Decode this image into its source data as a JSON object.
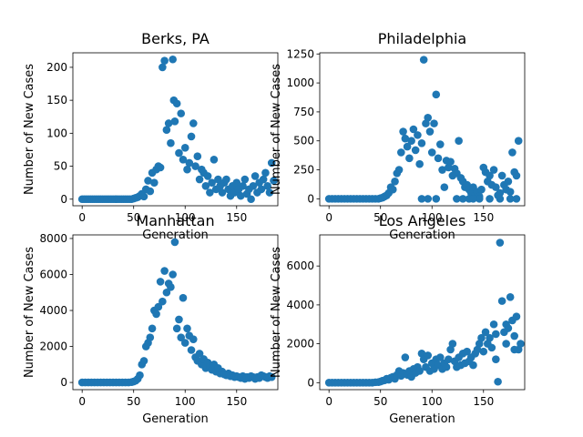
{
  "chart_data": [
    {
      "type": "scatter",
      "title": "Berks, PA",
      "xlabel": "Generation",
      "ylabel": "Number of New Cases",
      "xlim": [
        -9,
        190
      ],
      "ylim": [
        -10,
        222
      ],
      "xticks": [
        0,
        50,
        100,
        150
      ],
      "yticks": [
        0,
        50,
        100,
        150,
        200
      ],
      "grid": false,
      "color": "#1f77b4",
      "points": [
        [
          0,
          0
        ],
        [
          2,
          0
        ],
        [
          4,
          0
        ],
        [
          6,
          0
        ],
        [
          8,
          0
        ],
        [
          10,
          0
        ],
        [
          12,
          0
        ],
        [
          14,
          0
        ],
        [
          16,
          0
        ],
        [
          18,
          0
        ],
        [
          20,
          0
        ],
        [
          22,
          0
        ],
        [
          24,
          0
        ],
        [
          26,
          0
        ],
        [
          28,
          0
        ],
        [
          30,
          0
        ],
        [
          32,
          0
        ],
        [
          34,
          0
        ],
        [
          36,
          0
        ],
        [
          38,
          0
        ],
        [
          40,
          0
        ],
        [
          42,
          0
        ],
        [
          44,
          0
        ],
        [
          46,
          0
        ],
        [
          48,
          0
        ],
        [
          50,
          1
        ],
        [
          52,
          2
        ],
        [
          54,
          3
        ],
        [
          56,
          5
        ],
        [
          58,
          8
        ],
        [
          60,
          4
        ],
        [
          62,
          15
        ],
        [
          64,
          28
        ],
        [
          66,
          12
        ],
        [
          68,
          40
        ],
        [
          70,
          25
        ],
        [
          72,
          45
        ],
        [
          74,
          50
        ],
        [
          76,
          48
        ],
        [
          78,
          200
        ],
        [
          80,
          210
        ],
        [
          82,
          105
        ],
        [
          84,
          115
        ],
        [
          86,
          85
        ],
        [
          88,
          212
        ],
        [
          89,
          150
        ],
        [
          90,
          118
        ],
        [
          92,
          145
        ],
        [
          94,
          70
        ],
        [
          96,
          130
        ],
        [
          98,
          60
        ],
        [
          100,
          78
        ],
        [
          102,
          45
        ],
        [
          104,
          55
        ],
        [
          106,
          95
        ],
        [
          108,
          115
        ],
        [
          110,
          50
        ],
        [
          112,
          65
        ],
        [
          114,
          30
        ],
        [
          116,
          45
        ],
        [
          118,
          40
        ],
        [
          120,
          20
        ],
        [
          122,
          35
        ],
        [
          124,
          10
        ],
        [
          126,
          25
        ],
        [
          128,
          60
        ],
        [
          130,
          15
        ],
        [
          132,
          30
        ],
        [
          134,
          20
        ],
        [
          136,
          10
        ],
        [
          138,
          25
        ],
        [
          140,
          30
        ],
        [
          142,
          15
        ],
        [
          144,
          5
        ],
        [
          146,
          20
        ],
        [
          148,
          10
        ],
        [
          150,
          25
        ],
        [
          152,
          15
        ],
        [
          154,
          5
        ],
        [
          156,
          20
        ],
        [
          158,
          30
        ],
        [
          160,
          8
        ],
        [
          162,
          15
        ],
        [
          164,
          0
        ],
        [
          166,
          20
        ],
        [
          168,
          35
        ],
        [
          170,
          10
        ],
        [
          172,
          25
        ],
        [
          174,
          15
        ],
        [
          176,
          30
        ],
        [
          178,
          40
        ],
        [
          180,
          20
        ],
        [
          182,
          10
        ],
        [
          184,
          55
        ],
        [
          186,
          28
        ]
      ]
    },
    {
      "type": "scatter",
      "title": "Philadelphia",
      "xlabel": "Generation",
      "ylabel": "Number of New Cases",
      "xlim": [
        -9,
        190
      ],
      "ylim": [
        -60,
        1260
      ],
      "xticks": [
        0,
        50,
        100,
        150
      ],
      "yticks": [
        0,
        250,
        500,
        750,
        1000,
        1250
      ],
      "grid": false,
      "color": "#1f77b4",
      "points": [
        [
          0,
          0
        ],
        [
          3,
          0
        ],
        [
          6,
          0
        ],
        [
          9,
          0
        ],
        [
          12,
          0
        ],
        [
          15,
          0
        ],
        [
          18,
          0
        ],
        [
          21,
          0
        ],
        [
          24,
          0
        ],
        [
          27,
          0
        ],
        [
          30,
          0
        ],
        [
          33,
          0
        ],
        [
          36,
          0
        ],
        [
          39,
          0
        ],
        [
          42,
          0
        ],
        [
          45,
          0
        ],
        [
          48,
          0
        ],
        [
          50,
          5
        ],
        [
          52,
          10
        ],
        [
          54,
          20
        ],
        [
          56,
          30
        ],
        [
          58,
          50
        ],
        [
          60,
          100
        ],
        [
          62,
          80
        ],
        [
          64,
          150
        ],
        [
          66,
          220
        ],
        [
          68,
          250
        ],
        [
          70,
          400
        ],
        [
          72,
          580
        ],
        [
          74,
          520
        ],
        [
          76,
          450
        ],
        [
          78,
          350
        ],
        [
          80,
          500
        ],
        [
          82,
          600
        ],
        [
          84,
          420
        ],
        [
          86,
          550
        ],
        [
          88,
          300
        ],
        [
          90,
          480
        ],
        [
          92,
          1200
        ],
        [
          94,
          650
        ],
        [
          96,
          700
        ],
        [
          98,
          580
        ],
        [
          100,
          400
        ],
        [
          102,
          650
        ],
        [
          104,
          900
        ],
        [
          106,
          350
        ],
        [
          108,
          470
        ],
        [
          110,
          250
        ],
        [
          112,
          100
        ],
        [
          114,
          330
        ],
        [
          116,
          270
        ],
        [
          118,
          320
        ],
        [
          120,
          200
        ],
        [
          122,
          260
        ],
        [
          124,
          220
        ],
        [
          126,
          500
        ],
        [
          128,
          180
        ],
        [
          130,
          150
        ],
        [
          132,
          100
        ],
        [
          134,
          120
        ],
        [
          136,
          80
        ],
        [
          138,
          50
        ],
        [
          140,
          100
        ],
        [
          142,
          30
        ],
        [
          144,
          60
        ],
        [
          146,
          20
        ],
        [
          148,
          80
        ],
        [
          150,
          270
        ],
        [
          152,
          230
        ],
        [
          154,
          150
        ],
        [
          156,
          200
        ],
        [
          158,
          120
        ],
        [
          160,
          250
        ],
        [
          162,
          100
        ],
        [
          164,
          30
        ],
        [
          166,
          50
        ],
        [
          168,
          200
        ],
        [
          170,
          120
        ],
        [
          172,
          80
        ],
        [
          174,
          150
        ],
        [
          176,
          60
        ],
        [
          178,
          400
        ],
        [
          180,
          230
        ],
        [
          182,
          200
        ],
        [
          184,
          500
        ],
        [
          96,
          0
        ],
        [
          104,
          0
        ],
        [
          124,
          0
        ],
        [
          136,
          0
        ],
        [
          146,
          0
        ],
        [
          156,
          0
        ],
        [
          166,
          0
        ],
        [
          176,
          0
        ],
        [
          182,
          0
        ],
        [
          90,
          0
        ],
        [
          130,
          0
        ],
        [
          140,
          0
        ]
      ]
    },
    {
      "type": "scatter",
      "title": "Manhattan",
      "xlabel": "Generation",
      "ylabel": "Number of New Cases",
      "xlim": [
        -9,
        190
      ],
      "ylim": [
        -400,
        8200
      ],
      "xticks": [
        0,
        50,
        100,
        150
      ],
      "yticks": [
        0,
        2000,
        4000,
        6000,
        8000
      ],
      "grid": false,
      "color": "#1f77b4",
      "points": [
        [
          0,
          0
        ],
        [
          3,
          0
        ],
        [
          6,
          0
        ],
        [
          9,
          0
        ],
        [
          12,
          0
        ],
        [
          15,
          0
        ],
        [
          18,
          0
        ],
        [
          21,
          0
        ],
        [
          24,
          0
        ],
        [
          27,
          0
        ],
        [
          30,
          0
        ],
        [
          33,
          0
        ],
        [
          36,
          0
        ],
        [
          39,
          0
        ],
        [
          42,
          0
        ],
        [
          45,
          0
        ],
        [
          48,
          20
        ],
        [
          50,
          50
        ],
        [
          52,
          100
        ],
        [
          54,
          200
        ],
        [
          56,
          400
        ],
        [
          58,
          1000
        ],
        [
          60,
          1200
        ],
        [
          62,
          2000
        ],
        [
          64,
          2200
        ],
        [
          66,
          2500
        ],
        [
          68,
          3000
        ],
        [
          70,
          4000
        ],
        [
          72,
          3800
        ],
        [
          74,
          4200
        ],
        [
          76,
          5600
        ],
        [
          78,
          4500
        ],
        [
          80,
          6200
        ],
        [
          82,
          5000
        ],
        [
          84,
          5500
        ],
        [
          86,
          5300
        ],
        [
          88,
          6000
        ],
        [
          90,
          7800
        ],
        [
          92,
          3000
        ],
        [
          94,
          3500
        ],
        [
          96,
          2500
        ],
        [
          98,
          4700
        ],
        [
          100,
          2200
        ],
        [
          102,
          3000
        ],
        [
          104,
          2600
        ],
        [
          106,
          1800
        ],
        [
          108,
          2400
        ],
        [
          110,
          1400
        ],
        [
          112,
          1200
        ],
        [
          114,
          1600
        ],
        [
          116,
          1000
        ],
        [
          118,
          1300
        ],
        [
          120,
          800
        ],
        [
          122,
          1100
        ],
        [
          124,
          900
        ],
        [
          126,
          700
        ],
        [
          128,
          1000
        ],
        [
          130,
          600
        ],
        [
          132,
          800
        ],
        [
          134,
          500
        ],
        [
          136,
          600
        ],
        [
          138,
          450
        ],
        [
          140,
          400
        ],
        [
          142,
          500
        ],
        [
          144,
          350
        ],
        [
          146,
          400
        ],
        [
          148,
          300
        ],
        [
          150,
          350
        ],
        [
          152,
          300
        ],
        [
          154,
          250
        ],
        [
          156,
          350
        ],
        [
          158,
          200
        ],
        [
          160,
          300
        ],
        [
          162,
          250
        ],
        [
          164,
          350
        ],
        [
          166,
          300
        ],
        [
          168,
          200
        ],
        [
          170,
          300
        ],
        [
          172,
          250
        ],
        [
          174,
          400
        ],
        [
          176,
          350
        ],
        [
          178,
          300
        ],
        [
          180,
          250
        ],
        [
          182,
          350
        ],
        [
          184,
          300
        ]
      ]
    },
    {
      "type": "scatter",
      "title": "Los Angeles",
      "xlabel": "Generation",
      "ylabel": "Number of New Cases",
      "xlim": [
        -9,
        190
      ],
      "ylim": [
        -360,
        7600
      ],
      "xticks": [
        0,
        50,
        100,
        150
      ],
      "yticks": [
        0,
        2000,
        4000,
        6000
      ],
      "grid": false,
      "color": "#1f77b4",
      "points": [
        [
          0,
          0
        ],
        [
          3,
          0
        ],
        [
          6,
          0
        ],
        [
          9,
          0
        ],
        [
          12,
          0
        ],
        [
          15,
          0
        ],
        [
          18,
          0
        ],
        [
          21,
          0
        ],
        [
          24,
          0
        ],
        [
          27,
          0
        ],
        [
          30,
          0
        ],
        [
          33,
          0
        ],
        [
          36,
          0
        ],
        [
          39,
          0
        ],
        [
          42,
          0
        ],
        [
          45,
          20
        ],
        [
          48,
          30
        ],
        [
          50,
          60
        ],
        [
          52,
          100
        ],
        [
          54,
          120
        ],
        [
          56,
          200
        ],
        [
          58,
          150
        ],
        [
          60,
          250
        ],
        [
          62,
          300
        ],
        [
          64,
          200
        ],
        [
          66,
          400
        ],
        [
          68,
          600
        ],
        [
          70,
          350
        ],
        [
          72,
          500
        ],
        [
          74,
          1300
        ],
        [
          76,
          400
        ],
        [
          78,
          600
        ],
        [
          80,
          300
        ],
        [
          82,
          700
        ],
        [
          84,
          500
        ],
        [
          86,
          800
        ],
        [
          88,
          600
        ],
        [
          90,
          1500
        ],
        [
          92,
          1200
        ],
        [
          94,
          800
        ],
        [
          96,
          1400
        ],
        [
          98,
          600
        ],
        [
          100,
          1000
        ],
        [
          102,
          700
        ],
        [
          104,
          1200
        ],
        [
          106,
          900
        ],
        [
          108,
          1300
        ],
        [
          110,
          700
        ],
        [
          112,
          1000
        ],
        [
          114,
          800
        ],
        [
          116,
          1200
        ],
        [
          118,
          1700
        ],
        [
          120,
          2000
        ],
        [
          122,
          1100
        ],
        [
          124,
          800
        ],
        [
          126,
          1300
        ],
        [
          128,
          900
        ],
        [
          130,
          1500
        ],
        [
          132,
          1000
        ],
        [
          134,
          1600
        ],
        [
          136,
          1100
        ],
        [
          138,
          1300
        ],
        [
          140,
          900
        ],
        [
          142,
          1500
        ],
        [
          144,
          1700
        ],
        [
          146,
          2000
        ],
        [
          148,
          2300
        ],
        [
          150,
          1600
        ],
        [
          152,
          2600
        ],
        [
          154,
          2000
        ],
        [
          156,
          2300
        ],
        [
          158,
          1800
        ],
        [
          160,
          3000
        ],
        [
          162,
          2500
        ],
        [
          164,
          50
        ],
        [
          166,
          7200
        ],
        [
          168,
          4200
        ],
        [
          170,
          2600
        ],
        [
          172,
          3000
        ],
        [
          174,
          2800
        ],
        [
          176,
          4400
        ],
        [
          178,
          3200
        ],
        [
          180,
          2400
        ],
        [
          182,
          3400
        ],
        [
          184,
          1700
        ],
        [
          186,
          2000
        ],
        [
          162,
          1200
        ],
        [
          172,
          2000
        ],
        [
          180,
          1700
        ]
      ]
    }
  ]
}
